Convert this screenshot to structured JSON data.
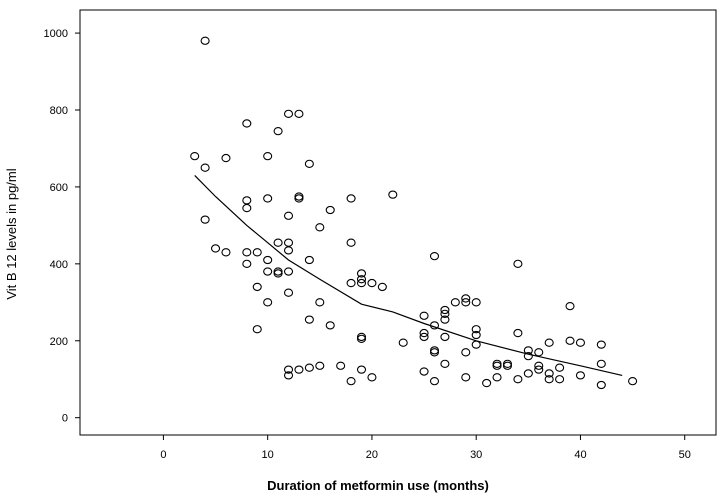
{
  "chart_data": {
    "type": "scatter",
    "title": "",
    "xlabel": "Duration of metformin use (months)",
    "ylabel": "Vit B 12 levels in pg/ml",
    "xlim": [
      -8,
      53
    ],
    "ylim": [
      -45,
      1060
    ],
    "x_ticks": [
      "0",
      "10",
      "20",
      "30",
      "40",
      "50"
    ],
    "x_tick_values": [
      0,
      10,
      20,
      30,
      40,
      50
    ],
    "y_ticks": [
      "0",
      "200",
      "400",
      "600",
      "800",
      "1000"
    ],
    "y_tick_values": [
      0,
      200,
      400,
      600,
      800,
      1000
    ],
    "grid": false,
    "legend": "none",
    "series": [
      {
        "points": [
          [
            3,
            680
          ],
          [
            4,
            980
          ],
          [
            4,
            650
          ],
          [
            4,
            515
          ],
          [
            5,
            440
          ],
          [
            6,
            675
          ],
          [
            6,
            430
          ],
          [
            8,
            765
          ],
          [
            8,
            565
          ],
          [
            8,
            545
          ],
          [
            8,
            430
          ],
          [
            8,
            400
          ],
          [
            9,
            430
          ],
          [
            9,
            340
          ],
          [
            9,
            230
          ],
          [
            10,
            680
          ],
          [
            10,
            570
          ],
          [
            10,
            410
          ],
          [
            10,
            380
          ],
          [
            10,
            300
          ],
          [
            11,
            745
          ],
          [
            11,
            455
          ],
          [
            11,
            380
          ],
          [
            11,
            375
          ],
          [
            12,
            790
          ],
          [
            12,
            525
          ],
          [
            12,
            455
          ],
          [
            12,
            435
          ],
          [
            12,
            380
          ],
          [
            12,
            325
          ],
          [
            12,
            125
          ],
          [
            12,
            110
          ],
          [
            13,
            790
          ],
          [
            13,
            575
          ],
          [
            13,
            570
          ],
          [
            13,
            125
          ],
          [
            14,
            660
          ],
          [
            14,
            410
          ],
          [
            14,
            255
          ],
          [
            14,
            130
          ],
          [
            15,
            495
          ],
          [
            15,
            300
          ],
          [
            15,
            135
          ],
          [
            16,
            540
          ],
          [
            16,
            240
          ],
          [
            17,
            135
          ],
          [
            18,
            570
          ],
          [
            18,
            455
          ],
          [
            18,
            350
          ],
          [
            18,
            95
          ],
          [
            19,
            375
          ],
          [
            19,
            360
          ],
          [
            19,
            350
          ],
          [
            19,
            210
          ],
          [
            19,
            205
          ],
          [
            19,
            125
          ],
          [
            20,
            350
          ],
          [
            20,
            105
          ],
          [
            21,
            340
          ],
          [
            22,
            580
          ],
          [
            23,
            195
          ],
          [
            25,
            265
          ],
          [
            25,
            220
          ],
          [
            25,
            210
          ],
          [
            25,
            120
          ],
          [
            26,
            420
          ],
          [
            26,
            240
          ],
          [
            26,
            175
          ],
          [
            26,
            170
          ],
          [
            26,
            95
          ],
          [
            27,
            280
          ],
          [
            27,
            270
          ],
          [
            27,
            255
          ],
          [
            27,
            210
          ],
          [
            27,
            140
          ],
          [
            28,
            300
          ],
          [
            29,
            310
          ],
          [
            29,
            300
          ],
          [
            29,
            170
          ],
          [
            29,
            105
          ],
          [
            30,
            300
          ],
          [
            30,
            230
          ],
          [
            30,
            215
          ],
          [
            30,
            190
          ],
          [
            31,
            90
          ],
          [
            32,
            140
          ],
          [
            32,
            135
          ],
          [
            32,
            105
          ],
          [
            33,
            140
          ],
          [
            33,
            135
          ],
          [
            34,
            400
          ],
          [
            34,
            220
          ],
          [
            34,
            100
          ],
          [
            35,
            175
          ],
          [
            35,
            160
          ],
          [
            35,
            115
          ],
          [
            36,
            170
          ],
          [
            36,
            135
          ],
          [
            36,
            125
          ],
          [
            37,
            195
          ],
          [
            37,
            115
          ],
          [
            37,
            100
          ],
          [
            38,
            130
          ],
          [
            38,
            100
          ],
          [
            39,
            290
          ],
          [
            39,
            200
          ],
          [
            40,
            195
          ],
          [
            40,
            110
          ],
          [
            42,
            190
          ],
          [
            42,
            140
          ],
          [
            42,
            85
          ],
          [
            45,
            95
          ]
        ]
      },
      {
        "fit_line": [
          [
            3,
            630
          ],
          [
            5,
            575
          ],
          [
            8,
            500
          ],
          [
            10,
            455
          ],
          [
            12,
            410
          ],
          [
            15,
            360
          ],
          [
            19,
            295
          ],
          [
            22,
            275
          ],
          [
            25,
            245
          ],
          [
            30,
            200
          ],
          [
            35,
            165
          ],
          [
            40,
            135
          ],
          [
            44,
            110
          ]
        ]
      }
    ]
  }
}
